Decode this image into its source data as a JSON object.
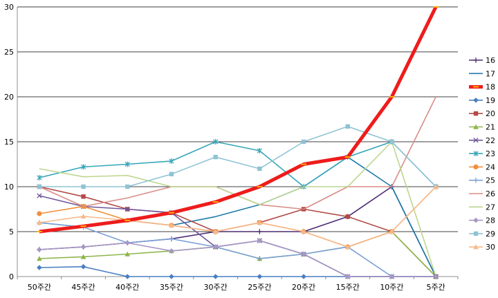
{
  "chart_data": {
    "type": "line",
    "title": "",
    "xlabel": "",
    "ylabel": "",
    "ylim": [
      0,
      30
    ],
    "yticks": [
      "0",
      "5",
      "10",
      "15",
      "20",
      "25",
      "30"
    ],
    "grid": true,
    "legend_position": "right",
    "categories": [
      "50주간",
      "45주간",
      "40주간",
      "35주간",
      "30주간",
      "25주간",
      "20주간",
      "15주간",
      "10주간",
      "5주간"
    ],
    "series": [
      {
        "name": "16",
        "color": "#4b2a73",
        "marker": "plus",
        "values": [
          3,
          3.3,
          3.75,
          4.2,
          5,
          5,
          5,
          6.67,
          10,
          0
        ]
      },
      {
        "name": "17",
        "color": "#1f7aa8",
        "marker": "none",
        "values": [
          6,
          5.5,
          6.25,
          5.7,
          6.67,
          8,
          10,
          13.3,
          10,
          0
        ]
      },
      {
        "name": "18",
        "color": "#ee1c1c",
        "marker": "dash",
        "highlight": true,
        "values": [
          5,
          5.6,
          6.25,
          7.1,
          8.3,
          10,
          12.5,
          13.3,
          20,
          30
        ]
      },
      {
        "name": "19",
        "color": "#4a7fc1",
        "marker": "diamond",
        "values": [
          1,
          1.1,
          0,
          0,
          0,
          0,
          0,
          0,
          0,
          0
        ]
      },
      {
        "name": "20",
        "color": "#b24a47",
        "marker": "square",
        "values": [
          10,
          8.9,
          7.5,
          7.1,
          5,
          6,
          7.5,
          6.67,
          5,
          0
        ]
      },
      {
        "name": "21",
        "color": "#8db54a",
        "marker": "triangle",
        "values": [
          2,
          2.2,
          2.5,
          2.85,
          3.3,
          2,
          2.5,
          3.3,
          5,
          0
        ]
      },
      {
        "name": "22",
        "color": "#6e559a",
        "marker": "x",
        "values": [
          9,
          7.8,
          7.5,
          7.1,
          3.3,
          4,
          2.5,
          0,
          0,
          0
        ]
      },
      {
        "name": "23",
        "color": "#35a5b8",
        "marker": "star",
        "values": [
          11,
          12.2,
          12.5,
          12.85,
          15,
          14,
          10,
          13.3,
          15,
          10
        ]
      },
      {
        "name": "24",
        "color": "#f28f3b",
        "marker": "circle",
        "values": [
          7,
          7.8,
          6.25,
          5.7,
          5,
          6,
          5,
          3.3,
          5,
          10
        ]
      },
      {
        "name": "25",
        "color": "#7a9fd6",
        "marker": "plus",
        "values": [
          6,
          5.5,
          3.75,
          4.2,
          3.3,
          2,
          2.5,
          3.3,
          0,
          0
        ]
      },
      {
        "name": "26",
        "color": "#d98c87",
        "marker": "none",
        "values": [
          10,
          7.8,
          8.75,
          10,
          10,
          8,
          7.5,
          10,
          10,
          20
        ]
      },
      {
        "name": "27",
        "color": "#bcd68e",
        "marker": "none",
        "values": [
          12,
          11.1,
          11.25,
          10,
          10,
          8,
          10,
          10,
          15,
          0
        ]
      },
      {
        "name": "28",
        "color": "#a697c4",
        "marker": "diamond",
        "values": [
          3,
          3.3,
          3.75,
          2.85,
          3.3,
          4,
          2.5,
          0,
          0,
          0
        ]
      },
      {
        "name": "29",
        "color": "#8fc3d4",
        "marker": "square",
        "values": [
          10,
          10,
          10,
          11.4,
          13.3,
          12,
          15,
          16.7,
          15,
          10
        ]
      },
      {
        "name": "30",
        "color": "#f7b98a",
        "marker": "triangle",
        "values": [
          6,
          6.7,
          6.25,
          5.7,
          5,
          6,
          5,
          3.3,
          5,
          10
        ]
      }
    ]
  }
}
